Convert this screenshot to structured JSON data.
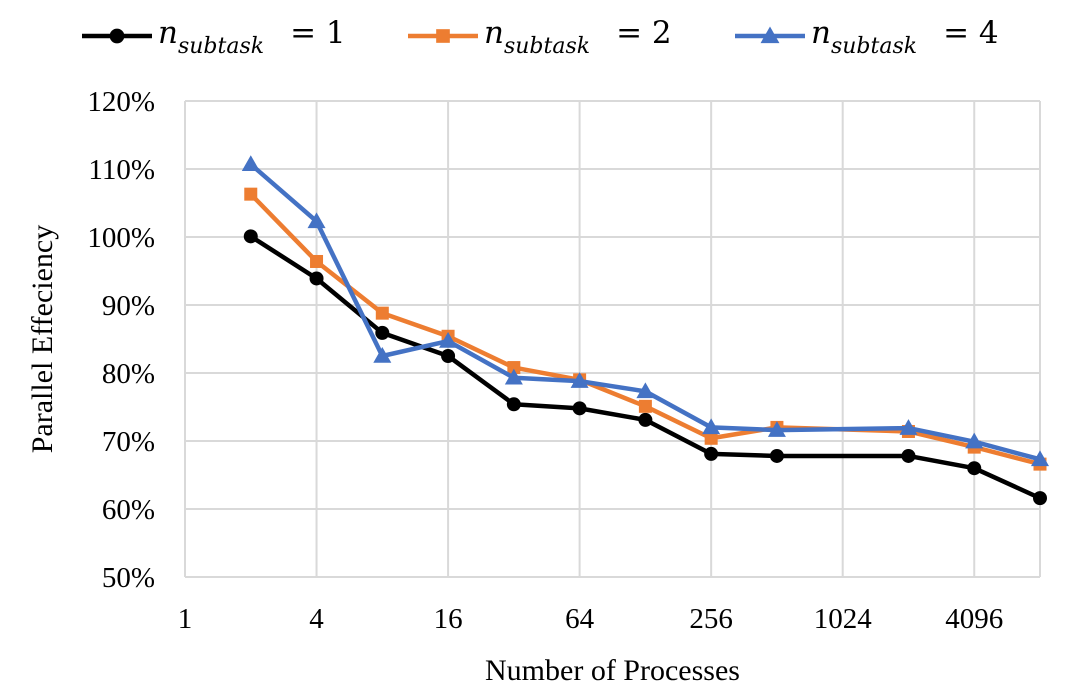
{
  "chart_data": {
    "type": "line",
    "xlabel": "Number of Processes",
    "ylabel": "Parallel Effeciency",
    "x_scale": "log2",
    "x_ticks": [
      1,
      4,
      16,
      64,
      256,
      1024,
      4096
    ],
    "x_tick_labels": [
      "1",
      "4",
      "16",
      "64",
      "256",
      "1024",
      "4096"
    ],
    "xlim": [
      1,
      8192
    ],
    "ylim": [
      50,
      120
    ],
    "y_ticks": [
      50,
      60,
      70,
      80,
      90,
      100,
      110,
      120
    ],
    "y_tick_labels": [
      "50%",
      "60%",
      "70%",
      "80%",
      "90%",
      "100%",
      "110%",
      "120%"
    ],
    "grid": true,
    "legend_position": "top",
    "x": [
      2,
      4,
      8,
      16,
      32,
      64,
      128,
      256,
      512,
      2048,
      4096,
      8192
    ],
    "series": [
      {
        "name": "n_subtask = 1",
        "legend_base": "n",
        "legend_sub": "subtask",
        "legend_eq": "= 1",
        "color": "#000000",
        "marker": "circle",
        "values": [
          100.1,
          93.9,
          85.9,
          82.5,
          75.4,
          74.8,
          73.1,
          68.1,
          67.8,
          67.8,
          66.0,
          61.6
        ]
      },
      {
        "name": "n_subtask = 2",
        "legend_base": "n",
        "legend_sub": "subtask",
        "legend_eq": "= 2",
        "color": "#ED7D31",
        "marker": "square",
        "values": [
          106.3,
          96.4,
          88.8,
          85.4,
          80.8,
          79.0,
          75.1,
          70.4,
          72.0,
          71.4,
          69.1,
          66.6
        ]
      },
      {
        "name": "n_subtask = 4",
        "legend_base": "n",
        "legend_sub": "subtask",
        "legend_eq": "= 4",
        "color": "#4472C4",
        "marker": "triangle",
        "values": [
          110.7,
          102.3,
          82.5,
          84.7,
          79.3,
          78.8,
          77.3,
          72.0,
          71.6,
          71.9,
          69.9,
          67.3
        ]
      }
    ]
  }
}
